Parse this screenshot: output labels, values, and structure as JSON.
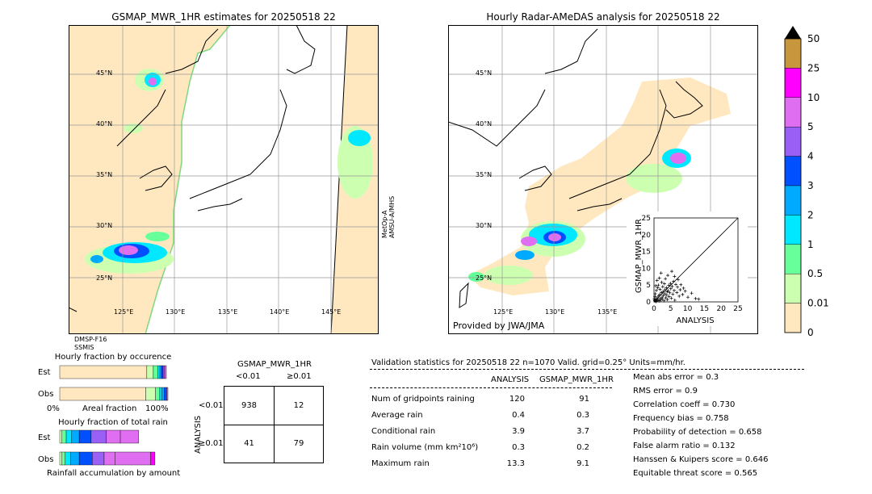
{
  "left_map": {
    "title": "GSMAP_MWR_1HR estimates for 20250518 22",
    "lat_labels": [
      "45°N",
      "40°N",
      "35°N",
      "30°N",
      "25°N"
    ],
    "lon_labels": [
      "125°E",
      "130°E",
      "135°E",
      "140°E",
      "145°E"
    ],
    "sat_right": "MetOp-A\nAMSU-A/MHS",
    "sat_right_1": "MetOp-A",
    "sat_right_2": "AMSU-A/MHS",
    "sat_bottom_1": "DMSP-F16",
    "sat_bottom_2": "SSMIS"
  },
  "right_map": {
    "title": "Hourly Radar-AMeDAS analysis for 20250518 22",
    "lat_labels": [
      "45°N",
      "40°N",
      "35°N",
      "30°N",
      "25°N"
    ],
    "lon_labels": [
      "125°E",
      "130°E",
      "135°E"
    ],
    "credit": "Provided by JWA/JMA"
  },
  "colorbar": {
    "labels": [
      "50",
      "25",
      "10",
      "5",
      "4",
      "3",
      "2",
      "1",
      "0.5",
      "0.01",
      "0"
    ],
    "colors": [
      "#c8963c",
      "#ff00ff",
      "#e06ef0",
      "#9a5ff5",
      "#0050ff",
      "#00aaff",
      "#00e8ff",
      "#66ff99",
      "#ccffb0",
      "#ffe8c0"
    ]
  },
  "chart_data": [
    {
      "type": "scatter",
      "title": "",
      "xlabel": "ANALYSIS",
      "ylabel": "GSMAP_MWR_1HR",
      "xlim": [
        0,
        25
      ],
      "ylim": [
        0,
        25
      ],
      "xticks": [
        "0",
        "5",
        "10",
        "15",
        "20",
        "25"
      ],
      "yticks": [
        "0",
        "5",
        "10",
        "15",
        "20",
        "25"
      ],
      "points": [
        [
          0.2,
          0.3
        ],
        [
          0.3,
          0.5
        ],
        [
          0.5,
          0.2
        ],
        [
          0.6,
          0.8
        ],
        [
          0.8,
          0.4
        ],
        [
          1.0,
          1.2
        ],
        [
          1.2,
          0.6
        ],
        [
          1.4,
          1.8
        ],
        [
          1.5,
          0.3
        ],
        [
          1.7,
          2.2
        ],
        [
          1.9,
          1.0
        ],
        [
          2.0,
          0.5
        ],
        [
          2.2,
          2.8
        ],
        [
          2.4,
          1.4
        ],
        [
          2.5,
          0.8
        ],
        [
          2.7,
          3.1
        ],
        [
          2.8,
          1.9
        ],
        [
          3.0,
          0.4
        ],
        [
          3.2,
          2.4
        ],
        [
          3.3,
          3.6
        ],
        [
          3.5,
          1.2
        ],
        [
          3.7,
          4.2
        ],
        [
          3.8,
          2.0
        ],
        [
          4.0,
          0.7
        ],
        [
          4.2,
          3.3
        ],
        [
          4.4,
          4.9
        ],
        [
          4.5,
          1.6
        ],
        [
          4.7,
          2.7
        ],
        [
          4.9,
          5.5
        ],
        [
          5.0,
          3.9
        ],
        [
          5.2,
          1.1
        ],
        [
          5.4,
          4.6
        ],
        [
          5.6,
          2.3
        ],
        [
          5.8,
          6.1
        ],
        [
          6.0,
          3.4
        ],
        [
          6.2,
          0.5
        ],
        [
          6.5,
          5.2
        ],
        [
          6.8,
          2.8
        ],
        [
          7.0,
          4.4
        ],
        [
          7.2,
          6.6
        ],
        [
          7.5,
          1.7
        ],
        [
          7.8,
          3.6
        ],
        [
          8.0,
          5.1
        ],
        [
          8.5,
          2.2
        ],
        [
          8.8,
          4.1
        ],
        [
          9.3,
          3.2
        ],
        [
          10.1,
          1.4
        ],
        [
          11.2,
          2.6
        ],
        [
          12.4,
          1.0
        ],
        [
          13.3,
          0.8
        ],
        [
          0.4,
          2.4
        ],
        [
          0.7,
          3.4
        ],
        [
          1.1,
          4.2
        ],
        [
          1.3,
          5.0
        ],
        [
          0.9,
          6.4
        ],
        [
          1.6,
          7.1
        ],
        [
          2.1,
          8.6
        ],
        [
          0.6,
          0.1
        ],
        [
          0.1,
          0.9
        ],
        [
          2.3,
          5.8
        ],
        [
          3.4,
          6.9
        ],
        [
          4.1,
          7.9
        ],
        [
          5.3,
          9.1
        ],
        [
          6.1,
          7.6
        ],
        [
          0.3,
          1.6
        ],
        [
          0.5,
          4.8
        ],
        [
          1.8,
          3.7
        ],
        [
          2.6,
          4.5
        ],
        [
          3.1,
          5.4
        ],
        [
          3.9,
          3.0
        ]
      ]
    },
    {
      "type": "bar",
      "title": "Hourly fraction by occurence",
      "categories": [
        "Est",
        "Obs"
      ],
      "xlabel": "Areal fraction",
      "x_left_label": "0%",
      "x_right_label": "100%",
      "series": [
        {
          "values": [
            0.805,
            0.795
          ]
        },
        {
          "values": [
            0.06,
            0.09
          ]
        },
        {
          "values": [
            0.04,
            0.04
          ]
        },
        {
          "values": [
            0.02,
            0.02
          ]
        },
        {
          "values": [
            0.015,
            0.02
          ]
        },
        {
          "values": [
            0.015,
            0.015
          ]
        },
        {
          "values": [
            0.015,
            0.01
          ]
        },
        {
          "values": [
            0.015,
            0.01
          ]
        }
      ],
      "series_colors": [
        "#ffe8c0",
        "#ccffb0",
        "#66ff99",
        "#00e8ff",
        "#00aaff",
        "#0050ff",
        "#9a5ff5",
        "#e06ef0"
      ]
    },
    {
      "type": "bar",
      "title": "Hourly fraction of total rain",
      "categories": [
        "Est",
        "Obs"
      ],
      "xlabel": "Rainfall accumulation by amount",
      "series": [
        {
          "values": [
            0.02,
            0.02
          ]
        },
        {
          "values": [
            0.04,
            0.03
          ]
        },
        {
          "values": [
            0.05,
            0.05
          ]
        },
        {
          "values": [
            0.07,
            0.08
          ]
        },
        {
          "values": [
            0.11,
            0.12
          ]
        },
        {
          "values": [
            0.14,
            0.11
          ]
        },
        {
          "values": [
            0.13,
            0.1
          ]
        },
        {
          "values": [
            0.17,
            0.33
          ]
        },
        {
          "values": [
            0.0,
            0.04
          ]
        },
        {
          "values": [
            0.0,
            0.0
          ]
        }
      ],
      "series_colors": [
        "#ccffb0",
        "#66ff99",
        "#00e8ff",
        "#00aaff",
        "#0050ff",
        "#9a5ff5",
        "#e06ef0",
        "#e06ef0",
        "#ff00ff",
        "#c8963c"
      ]
    },
    {
      "type": "table",
      "title": "GSMAP_MWR_1HR",
      "col_headers": [
        "<0.01",
        "≥0.01"
      ],
      "row_label": "ANALYSIS",
      "row_headers": [
        "<0.01",
        "≥0.01"
      ],
      "cells": [
        [
          "938",
          "12"
        ],
        [
          "41",
          "79"
        ]
      ]
    }
  ],
  "validation": {
    "header": "Validation statistics for 20250518 22  n=1070 Valid. grid=0.25° Units=mm/hr.",
    "col_analysis": "ANALYSIS",
    "col_gsmap": "GSMAP_MWR_1HR",
    "rows": [
      {
        "label": "Num of gridpoints raining",
        "a": "120",
        "g": "91"
      },
      {
        "label": "Average rain",
        "a": "0.4",
        "g": "0.3"
      },
      {
        "label": "Conditional rain",
        "a": "3.9",
        "g": "3.7"
      },
      {
        "label": "Rain volume (mm km²10⁶)",
        "a": "0.3",
        "g": "0.2"
      },
      {
        "label": "Maximum rain",
        "a": "13.3",
        "g": "9.1"
      }
    ],
    "scores": [
      "Mean abs error =    0.3",
      "RMS error =    0.9",
      "Correlation coeff =  0.730",
      "Frequency bias =  0.758",
      "Probability of detection =  0.658",
      "False alarm ratio =  0.132",
      "Hanssen & Kuipers score =  0.646",
      "Equitable threat score =  0.565"
    ]
  }
}
